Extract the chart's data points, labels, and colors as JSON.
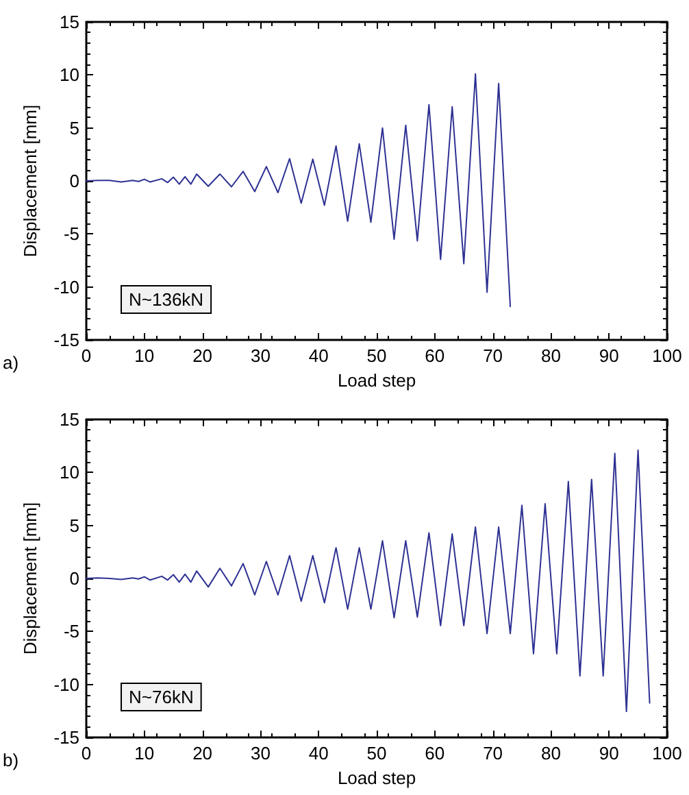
{
  "chart_data": [
    {
      "type": "line",
      "xlabel": "Load step",
      "ylabel": "Displacement [mm]",
      "annotations": [
        "N~136kN",
        "a)"
      ],
      "xlim": [
        0,
        100
      ],
      "xticks": [
        0,
        10,
        20,
        30,
        40,
        50,
        60,
        70,
        80,
        90,
        100
      ],
      "ylim": [
        -15,
        15
      ],
      "yticks": [
        -15,
        -10,
        -5,
        0,
        5,
        10,
        15
      ],
      "grid": false,
      "marker": "none",
      "line_style": "solid",
      "series": [
        {
          "color": "#2e3192",
          "x": [
            0,
            2,
            4,
            6,
            8,
            9,
            10,
            11,
            13,
            14,
            15,
            16,
            17,
            18,
            19,
            21,
            23,
            25,
            27,
            29,
            31,
            33,
            35,
            37,
            39,
            41,
            43,
            45,
            47,
            49,
            51,
            53,
            55,
            57,
            59,
            61,
            63,
            65,
            67,
            69,
            71,
            73
          ],
          "values": [
            0,
            0.05,
            0.05,
            -0.1,
            0.05,
            -0.05,
            0.15,
            -0.1,
            0.2,
            -0.15,
            0.35,
            -0.3,
            0.4,
            -0.3,
            0.65,
            -0.5,
            0.65,
            -0.55,
            0.9,
            -1.0,
            1.35,
            -1.1,
            2.1,
            -2.1,
            2.05,
            -2.3,
            3.3,
            -3.8,
            3.5,
            -3.9,
            5.0,
            -5.5,
            5.25,
            -5.65,
            7.2,
            -7.4,
            7.0,
            -7.8,
            10.1,
            -10.5,
            9.2,
            -11.85
          ]
        }
      ]
    },
    {
      "type": "line",
      "xlabel": "Load step",
      "ylabel": "Displacement [mm]",
      "annotations": [
        "N~76kN",
        "b)"
      ],
      "xlim": [
        0,
        100
      ],
      "xticks": [
        0,
        10,
        20,
        30,
        40,
        50,
        60,
        70,
        80,
        90,
        100
      ],
      "ylim": [
        -15,
        15
      ],
      "yticks": [
        -15,
        -10,
        -5,
        0,
        5,
        10,
        15
      ],
      "grid": false,
      "marker": "none",
      "line_style": "solid",
      "series": [
        {
          "color": "#2e3192",
          "x": [
            0,
            2,
            4,
            6,
            8,
            9,
            10,
            11,
            13,
            14,
            15,
            16,
            17,
            18,
            19,
            21,
            23,
            25,
            27,
            29,
            31,
            33,
            35,
            37,
            39,
            41,
            43,
            45,
            47,
            49,
            51,
            53,
            55,
            57,
            59,
            61,
            63,
            65,
            67,
            69,
            71,
            73,
            75,
            77,
            79,
            81,
            83,
            85,
            87,
            89,
            91,
            93,
            95,
            97
          ],
          "values": [
            0,
            0.05,
            0.0,
            -0.1,
            0.05,
            -0.05,
            0.15,
            -0.15,
            0.2,
            -0.15,
            0.35,
            -0.35,
            0.4,
            -0.35,
            0.7,
            -0.8,
            0.95,
            -0.7,
            1.4,
            -1.55,
            1.6,
            -1.55,
            2.15,
            -2.15,
            2.15,
            -2.3,
            2.9,
            -2.9,
            2.9,
            -2.9,
            3.55,
            -3.7,
            3.55,
            -3.65,
            4.3,
            -4.45,
            4.2,
            -4.45,
            4.85,
            -5.2,
            4.85,
            -5.2,
            6.9,
            -7.1,
            7.05,
            -7.1,
            9.15,
            -9.2,
            9.35,
            -9.2,
            11.8,
            -12.55,
            12.1,
            -11.75
          ]
        }
      ]
    }
  ]
}
